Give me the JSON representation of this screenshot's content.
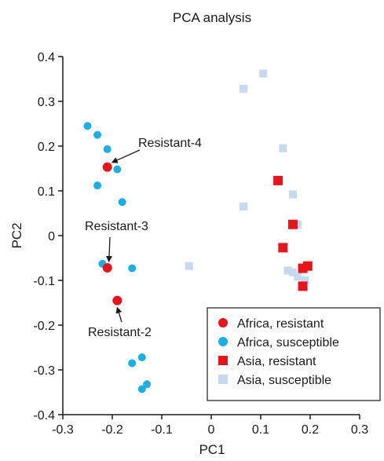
{
  "chart_data": {
    "type": "scatter",
    "title": "PCA analysis",
    "xlabel": "PC1",
    "ylabel": "PC2",
    "xlim": [
      -0.3,
      0.3
    ],
    "ylim": [
      -0.4,
      0.4
    ],
    "xticks": [
      "-0.3",
      "-0.2",
      "-0.1",
      "0",
      "0.1",
      "0.2",
      "0.3"
    ],
    "yticks": [
      "0.4",
      "0.3",
      "0.2",
      "0.1",
      "0",
      "-0.1",
      "-0.2",
      "-0.3",
      "-0.4"
    ],
    "legend_position": "bottom-right",
    "series": [
      {
        "name": "Africa, resistant",
        "marker": "circle",
        "color": "#e8141b",
        "points": [
          [
            -0.21,
            0.153
          ],
          [
            -0.21,
            -0.072
          ],
          [
            -0.19,
            -0.145
          ]
        ]
      },
      {
        "name": "Africa, susceptible",
        "marker": "circle",
        "color": "#1eaee6",
        "points": [
          [
            -0.25,
            0.245
          ],
          [
            -0.23,
            0.225
          ],
          [
            -0.21,
            0.193
          ],
          [
            -0.19,
            0.148
          ],
          [
            -0.23,
            0.112
          ],
          [
            -0.18,
            0.075
          ],
          [
            -0.22,
            -0.063
          ],
          [
            -0.16,
            -0.073
          ],
          [
            -0.14,
            -0.272
          ],
          [
            -0.16,
            -0.285
          ],
          [
            -0.13,
            -0.332
          ],
          [
            -0.14,
            -0.343
          ]
        ]
      },
      {
        "name": "Asia, resistant",
        "marker": "square",
        "color": "#e8141b",
        "points": [
          [
            0.135,
            0.123
          ],
          [
            0.165,
            0.025
          ],
          [
            0.145,
            -0.027
          ],
          [
            0.185,
            -0.073
          ],
          [
            0.195,
            -0.068
          ],
          [
            0.185,
            -0.113
          ]
        ]
      },
      {
        "name": "Asia, susceptible",
        "marker": "square",
        "color": "#c6d9ef",
        "points": [
          [
            0.105,
            0.362
          ],
          [
            0.065,
            0.328
          ],
          [
            0.145,
            0.195
          ],
          [
            0.165,
            0.092
          ],
          [
            0.065,
            0.065
          ],
          [
            -0.045,
            -0.068
          ],
          [
            0.175,
            0.025
          ],
          [
            0.165,
            -0.082
          ],
          [
            0.155,
            -0.078
          ],
          [
            0.175,
            -0.092
          ],
          [
            0.19,
            -0.1
          ]
        ]
      }
    ],
    "annotations": [
      {
        "text": "Resistant-4",
        "target": [
          -0.21,
          0.153
        ]
      },
      {
        "text": "Resistant-3",
        "target": [
          -0.21,
          -0.072
        ]
      },
      {
        "text": "Resistant-2",
        "target": [
          -0.19,
          -0.145
        ]
      }
    ]
  }
}
